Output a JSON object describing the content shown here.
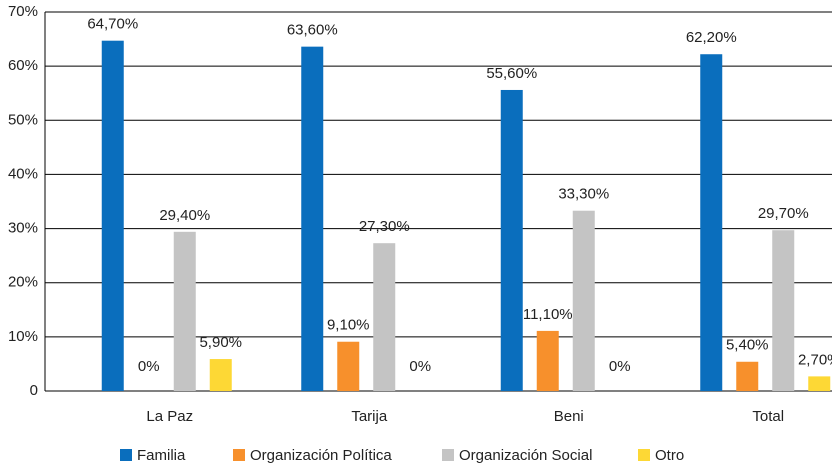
{
  "chart_data": {
    "type": "bar",
    "categories": [
      "La Paz",
      "Tarija",
      "Beni",
      "Total"
    ],
    "series": [
      {
        "name": "Familia",
        "color": "#0a6ebd",
        "values": [
          64.7,
          63.6,
          55.6,
          62.2
        ],
        "value_labels": [
          "64,70%",
          "63,60%",
          "55,60%",
          "62,20%"
        ]
      },
      {
        "name": "Organización Política",
        "color": "#f7902c",
        "values": [
          0,
          9.1,
          11.1,
          5.4
        ],
        "value_labels": [
          "0%",
          "9,10%",
          "11,10%",
          "5,40%"
        ]
      },
      {
        "name": "Organización Social",
        "color": "#c4c4c4",
        "values": [
          29.4,
          27.3,
          33.3,
          29.7
        ],
        "value_labels": [
          "29,40%",
          "27,30%",
          "33,30%",
          "29,70%"
        ]
      },
      {
        "name": "Otro",
        "color": "#fdd835",
        "values": [
          5.9,
          0,
          0,
          2.7
        ],
        "value_labels": [
          "5,90%",
          "0%",
          "0%",
          "2,70%"
        ]
      }
    ],
    "ylim": [
      0,
      70
    ],
    "yticks": [
      0,
      {
        "value": 10,
        "label": "10%"
      },
      {
        "value": 20,
        "label": "20%"
      },
      {
        "value": 30,
        "label": "30%"
      },
      {
        "value": 40,
        "label": "40%"
      },
      {
        "value": 50,
        "label": "50%"
      },
      {
        "value": 60,
        "label": "60%"
      },
      {
        "value": 70,
        "label": "70%"
      }
    ],
    "grid": true,
    "legend": "bottom"
  }
}
